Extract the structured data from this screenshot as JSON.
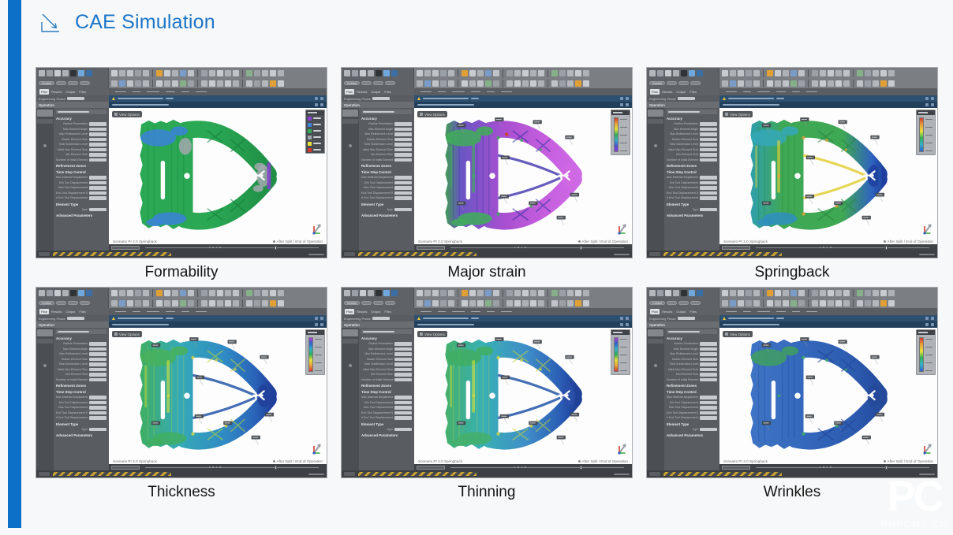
{
  "slide": {
    "title": "CAE Simulation",
    "accent_color": "#0c70c8",
    "title_color": "#1b75c8",
    "background": "#f7f8f9"
  },
  "watermark": {
    "logo": "PC",
    "text": "PHPCMS.CN"
  },
  "app_chrome": {
    "toolbar": {
      "pill_label": "Control",
      "tabs": [
        "Plan",
        "Results",
        "Output",
        "Files"
      ]
    },
    "left_panel": {
      "engineering_phase_label": "Engineering Phase",
      "operation_label": "Operation",
      "sections": [
        {
          "name": "Accuracy",
          "fields": [
            "Radius Penetration",
            "Max Element Angle",
            "Max Refinement Level",
            "Master Element Size",
            "Total Subdivision Level",
            "Initial Max Element Size",
            "Min Element Size",
            "Number of Initial Elements"
          ]
        },
        {
          "name": "Refinement Zones",
          "fields": []
        },
        {
          "name": "Time Step Control",
          "fields": [
            "Max Material Displacement",
            "Min Tool Displacement",
            "Max Tool Displacement",
            "End Tool Displacement Step",
            "# End Tool Displacement Steps"
          ]
        },
        {
          "name": "Element Type",
          "fields": [
            "Type"
          ]
        },
        {
          "name": "Advanced Parameters",
          "fields": []
        }
      ]
    },
    "viewport": {
      "view_options_label": "View Options",
      "status_left": "Scenario Pr 2.0 Springback",
      "status_right": "After Split / End of Operation"
    }
  },
  "panels": [
    {
      "caption": "Formability",
      "legend_type": "discrete",
      "legend_colors": [
        "#8a3fd4",
        "#3b82d9",
        "#2fae58",
        "#9fa6ad",
        "#e8e23a",
        "#d43a2f"
      ],
      "callouts": false,
      "scheme": {
        "body": [
          [
            0,
            "#2aa854"
          ],
          [
            0.55,
            "#2aa854"
          ],
          [
            0.8,
            "#249a4c"
          ],
          [
            1,
            "#1f8f47"
          ]
        ],
        "rib": "#137a38",
        "patches": {
          "top_left": "#3b82d9",
          "bottom_left": "#3b82d9",
          "mid_gray": "#a2a8ae",
          "tip_strip": "#8a3fd4",
          "tip": "#a2a8ae",
          "inner_edge": null,
          "spots": null,
          "pillar_streak": null,
          "red_spot": null
        }
      }
    },
    {
      "caption": "Major strain",
      "legend_type": "gradient",
      "legend_colors": [
        "#d43a2f",
        "#e8a03a",
        "#e8e23a",
        "#2fae58",
        "#35b0c8",
        "#4a4fd4",
        "#8a3fd4"
      ],
      "callouts": true,
      "scheme": {
        "body": [
          [
            0,
            "#3f9d52"
          ],
          [
            0.12,
            "#6a55c4"
          ],
          [
            0.45,
            "#a84fd0"
          ],
          [
            0.75,
            "#c45ede"
          ],
          [
            1,
            "#cf6ae6"
          ]
        ],
        "rib": "#2c2f9c",
        "patches": {
          "top_left": "#3fae58",
          "bottom_left": "#3fae58",
          "mid_gray": null,
          "tip_strip": null,
          "tip": "#d069e2",
          "inner_edge": "#4a3fb0",
          "spots": "#3fae58",
          "pillar_streak": "#3fae58",
          "red_spot": "#d04030"
        }
      }
    },
    {
      "caption": "Springback",
      "legend_type": "gradient",
      "legend_colors": [
        "#d43a2f",
        "#e8a03a",
        "#e8e23a",
        "#2fae58",
        "#35b0c8",
        "#2f63c8"
      ],
      "callouts": true,
      "scheme": {
        "body": [
          [
            0,
            "#2f9fae"
          ],
          [
            0.25,
            "#3fa854"
          ],
          [
            0.7,
            "#3fa854"
          ],
          [
            0.92,
            "#2f63c0"
          ],
          [
            1,
            "#1e3f9f"
          ]
        ],
        "rib": "#27813f",
        "patches": {
          "top_left": "#35a8b8",
          "bottom_left": "#2f8fc0",
          "mid_gray": null,
          "tip_strip": "#2450a8",
          "tip": "#1e3f9f",
          "inner_edge": "#e2cf3a",
          "spots": "#e8a03a",
          "pillar_streak": "#e2cf3a",
          "red_spot": null
        }
      }
    },
    {
      "caption": "Thickness",
      "legend_type": "gradient",
      "legend_colors": [
        "#b03fd4",
        "#2f63c8",
        "#35b0c8",
        "#2fae58",
        "#e8e23a",
        "#e8a03a",
        "#d43a2f"
      ],
      "callouts": true,
      "scheme": {
        "body": [
          [
            0,
            "#3fae62"
          ],
          [
            0.3,
            "#36aab8"
          ],
          [
            0.65,
            "#2f8ac4"
          ],
          [
            0.88,
            "#2a62b8"
          ],
          [
            1,
            "#203f9a"
          ]
        ],
        "rib": "#b8d438",
        "patches": {
          "top_left": "#46b05a",
          "bottom_left": "#3fae62",
          "mid_gray": null,
          "tip_strip": null,
          "tip": "#203f9a",
          "inner_edge": "#2456a8",
          "spots": "#d8d843",
          "pillar_streak": "#cfe03a",
          "red_spot": null
        }
      }
    },
    {
      "caption": "Thinning",
      "legend_type": "gradient",
      "legend_colors": [
        "#b03fd4",
        "#2f63c8",
        "#35b0c8",
        "#2fae58",
        "#e8e23a",
        "#e8a03a",
        "#d43a2f"
      ],
      "callouts": true,
      "scheme": {
        "body": [
          [
            0,
            "#44b06a"
          ],
          [
            0.28,
            "#38b0b4"
          ],
          [
            0.62,
            "#3f8ec8"
          ],
          [
            0.88,
            "#2a5cb4"
          ],
          [
            1,
            "#1e4096"
          ]
        ],
        "rib": "#c0d43a",
        "patches": {
          "top_left": "#3fae62",
          "bottom_left": "#44b06a",
          "mid_gray": null,
          "tip_strip": null,
          "tip": "#2a50aa",
          "inner_edge": "#2456a8",
          "spots": "#d8d843",
          "pillar_streak": "#cfe03a",
          "red_spot": null
        }
      }
    },
    {
      "caption": "Wrinkles",
      "legend_type": "gradient",
      "legend_colors": [
        "#d43a2f",
        "#e8a03a",
        "#e8e23a",
        "#2fae58",
        "#35b0c8",
        "#2f63c8"
      ],
      "callouts": true,
      "scheme": {
        "body": [
          [
            0,
            "#3f74c4"
          ],
          [
            0.4,
            "#3468bc"
          ],
          [
            0.8,
            "#2c5aae"
          ],
          [
            1,
            "#24499a"
          ]
        ],
        "rib": "#1f4190",
        "patches": {
          "top_left": "#3f9f5f",
          "bottom_left": null,
          "mid_gray": null,
          "tip_strip": null,
          "tip": "#24499a",
          "inner_edge": null,
          "spots": "#3fae62",
          "pillar_streak": null,
          "red_spot": null
        }
      }
    }
  ]
}
